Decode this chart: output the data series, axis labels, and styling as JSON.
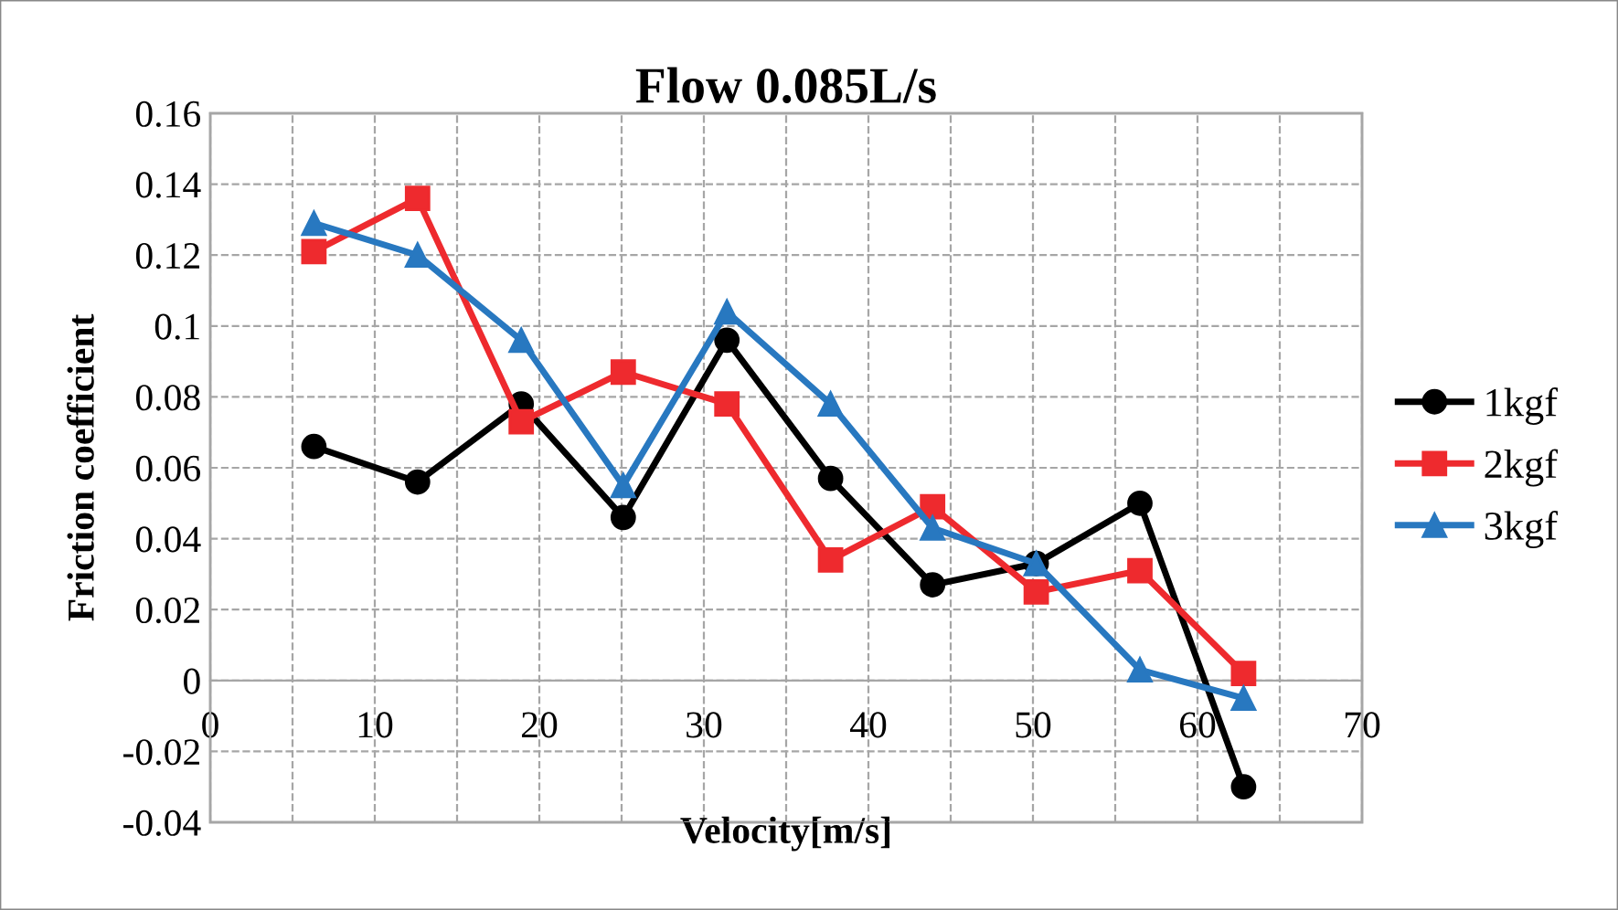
{
  "chart_data": {
    "type": "line",
    "title": "Flow 0.085L/s",
    "xlabel": "Velocity[m/s]",
    "ylabel": "Friction coefficient",
    "x": [
      6.3,
      12.6,
      18.9,
      25.1,
      31.4,
      37.7,
      43.9,
      50.2,
      56.5,
      62.8
    ],
    "series": [
      {
        "name": "1kgf",
        "color": "#000000",
        "marker": "circle",
        "values": [
          0.066,
          0.056,
          0.078,
          0.046,
          0.096,
          0.057,
          0.027,
          0.033,
          0.05,
          -0.03
        ]
      },
      {
        "name": "2kgf",
        "color": "#ee2a2e",
        "marker": "square",
        "values": [
          0.121,
          0.136,
          0.073,
          0.087,
          0.078,
          0.034,
          0.049,
          0.025,
          0.031,
          0.002
        ]
      },
      {
        "name": "3kgf",
        "color": "#2878c0",
        "marker": "triangle",
        "values": [
          0.129,
          0.12,
          0.096,
          0.055,
          0.104,
          0.078,
          0.043,
          0.033,
          0.003,
          -0.005
        ]
      }
    ],
    "xlim": [
      0,
      70
    ],
    "xticks": [
      0,
      {
        "value": 5,
        "label": null
      },
      10,
      {
        "value": 15,
        "label": null
      },
      20,
      {
        "value": 25,
        "label": null
      },
      30,
      {
        "value": 35,
        "label": null
      },
      40,
      {
        "value": 45,
        "label": null
      },
      50,
      {
        "value": 55,
        "label": null
      },
      60,
      {
        "value": 65,
        "label": null
      },
      70
    ],
    "ylim": [
      -0.04,
      0.16
    ],
    "yticks": [
      -0.04,
      -0.02,
      0,
      0.02,
      0.04,
      0.06,
      0.08,
      0.1,
      0.12,
      0.14,
      0.16
    ],
    "grid": true,
    "legend": "right",
    "line_style": "solid"
  }
}
